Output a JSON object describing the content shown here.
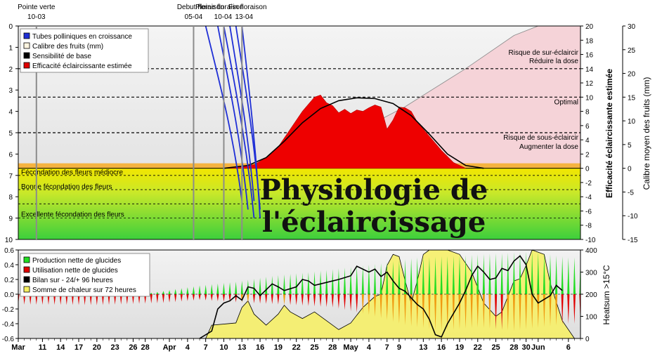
{
  "overlay_title": {
    "line1": "Physiologie de",
    "line2": "l'éclaircissage"
  },
  "chart_data": [
    {
      "type": "area",
      "panel": "top",
      "x_axis": {
        "type": "date",
        "range": [
          "2017-03-07",
          "2017-06-08"
        ]
      },
      "y_left": {
        "range": [
          0,
          10
        ],
        "reversed": true,
        "ticks": [
          "0",
          "1",
          "2",
          "3",
          "4",
          "5",
          "6",
          "7",
          "8",
          "9",
          "10"
        ]
      },
      "y_right1": {
        "label": "Efficacité éclaircissante estimée",
        "range": [
          -10,
          20
        ],
        "ticks": [
          "20",
          "18",
          "16",
          "14",
          "12",
          "10",
          "8",
          "6",
          "4",
          "2",
          "0",
          "-2",
          "-4",
          "-6",
          "-8",
          "-10"
        ]
      },
      "y_right2": {
        "label": "Calibre moyen des fruits (mm)",
        "range": [
          -15,
          30
        ],
        "ticks": [
          "30",
          "25",
          "20",
          "15",
          "10",
          "5",
          "0",
          "-5",
          "-10",
          "-15"
        ]
      },
      "legend": {
        "placement": "top-left",
        "entries": [
          {
            "name": "Tubes polliniques en croissance",
            "color": "#1f2fd6"
          },
          {
            "name": "Calibre des fruits (mm)",
            "color": "#fff5e0"
          },
          {
            "name": "Sensibilité de base",
            "color": "#000000"
          },
          {
            "name": "Efficacité éclaircissante estimée",
            "color": "#e00000"
          }
        ]
      },
      "events": [
        {
          "date": "2017-03-10",
          "label": "Pointe verte",
          "sub": "10-03"
        },
        {
          "date": "2017-04-05",
          "label": "Debut floraison",
          "sub": "05-04"
        },
        {
          "date": "2017-04-10",
          "label": "Pleine floraison",
          "sub": "10-04"
        },
        {
          "date": "2017-04-13",
          "label": "Fin floraison",
          "sub": "13-04"
        }
      ],
      "thresholds": [
        {
          "value": 14,
          "label": "Risque de sur-éclaircir",
          "sub": "Réduire la dose"
        },
        {
          "value": 10,
          "label": "Optimal",
          "sub": ""
        },
        {
          "value": 5,
          "label": "Risque de sous-éclaircir",
          "sub": "Augmenter la dose"
        }
      ],
      "zones": [
        {
          "label": "Fécondation des fleurs médiocre"
        },
        {
          "label": "Bonne fécondation des fleurs"
        },
        {
          "label": "Excellente fécondation des fleurs"
        }
      ],
      "efficacite_series": [
        [
          "2017-04-10",
          0
        ],
        [
          "2017-04-15",
          0.5
        ],
        [
          "2017-04-17",
          1.5
        ],
        [
          "2017-04-19",
          3
        ],
        [
          "2017-04-21",
          5.5
        ],
        [
          "2017-04-23",
          8
        ],
        [
          "2017-04-25",
          10
        ],
        [
          "2017-04-26",
          10.3
        ],
        [
          "2017-04-27",
          9.2
        ],
        [
          "2017-04-28",
          8.8
        ],
        [
          "2017-04-29",
          7.8
        ],
        [
          "2017-04-30",
          8.3
        ],
        [
          "2017-05-01",
          7.7
        ],
        [
          "2017-05-02",
          8.2
        ],
        [
          "2017-05-03",
          8.0
        ],
        [
          "2017-05-04",
          8.5
        ],
        [
          "2017-05-05",
          8.9
        ],
        [
          "2017-05-06",
          8.6
        ],
        [
          "2017-05-07",
          5.5
        ],
        [
          "2017-05-08",
          6.8
        ],
        [
          "2017-05-09",
          8.6
        ],
        [
          "2017-05-10",
          8.5
        ],
        [
          "2017-05-11",
          8.0
        ],
        [
          "2017-05-12",
          6.5
        ],
        [
          "2017-05-14",
          4.5
        ],
        [
          "2017-05-16",
          2.5
        ],
        [
          "2017-05-18",
          0.8
        ],
        [
          "2017-05-20",
          0
        ]
      ],
      "sensibilite_series": [
        [
          "2017-04-10",
          0
        ],
        [
          "2017-04-14",
          0.4
        ],
        [
          "2017-04-17",
          1.5
        ],
        [
          "2017-04-20",
          3.8
        ],
        [
          "2017-04-23",
          6.4
        ],
        [
          "2017-04-26",
          8.4
        ],
        [
          "2017-04-29",
          9.5
        ],
        [
          "2017-05-02",
          9.9
        ],
        [
          "2017-05-05",
          9.8
        ],
        [
          "2017-05-08",
          9.1
        ],
        [
          "2017-05-11",
          7.4
        ],
        [
          "2017-05-14",
          4.8
        ],
        [
          "2017-05-17",
          2.0
        ],
        [
          "2017-05-20",
          0.4
        ],
        [
          "2017-05-23",
          0
        ]
      ],
      "calibre_series": [
        [
          "2017-04-10",
          0
        ],
        [
          "2017-04-20",
          2
        ],
        [
          "2017-05-01",
          7
        ],
        [
          "2017-05-10",
          13
        ],
        [
          "2017-05-20",
          21
        ],
        [
          "2017-05-28",
          28
        ],
        [
          "2017-06-01",
          30
        ]
      ],
      "pollen_tubes": [
        {
          "start": "2017-04-07",
          "end": "2017-04-13"
        },
        {
          "start": "2017-04-09",
          "end": "2017-04-14"
        },
        {
          "start": "2017-04-10",
          "end": "2017-04-15"
        },
        {
          "start": "2017-04-11",
          "end": "2017-04-15"
        },
        {
          "start": "2017-04-12",
          "end": "2017-04-16"
        },
        {
          "start": "2017-04-13",
          "end": "2017-04-16"
        }
      ]
    },
    {
      "type": "bar",
      "panel": "bottom",
      "x_axis": {
        "type": "date",
        "range": [
          "2017-03-07",
          "2017-06-08"
        ],
        "ticks": [
          [
            "2017-03-07",
            "Mar"
          ],
          [
            "2017-03-11",
            "11"
          ],
          [
            "2017-03-14",
            "14"
          ],
          [
            "2017-03-17",
            "17"
          ],
          [
            "2017-03-20",
            "20"
          ],
          [
            "2017-03-23",
            "23"
          ],
          [
            "2017-03-26",
            "26"
          ],
          [
            "2017-03-28",
            "28"
          ],
          [
            "2017-04-01",
            "Apr"
          ],
          [
            "2017-04-04",
            "4"
          ],
          [
            "2017-04-07",
            "7"
          ],
          [
            "2017-04-10",
            "10"
          ],
          [
            "2017-04-13",
            "13"
          ],
          [
            "2017-04-16",
            "16"
          ],
          [
            "2017-04-19",
            "19"
          ],
          [
            "2017-04-22",
            "22"
          ],
          [
            "2017-04-25",
            "25"
          ],
          [
            "2017-04-28",
            "28"
          ],
          [
            "2017-05-01",
            "May"
          ],
          [
            "2017-05-04",
            "4"
          ],
          [
            "2017-05-07",
            "7"
          ],
          [
            "2017-05-09",
            "9"
          ],
          [
            "2017-05-13",
            "13"
          ],
          [
            "2017-05-16",
            "16"
          ],
          [
            "2017-05-19",
            "19"
          ],
          [
            "2017-05-22",
            "22"
          ],
          [
            "2017-05-25",
            "25"
          ],
          [
            "2017-05-28",
            "28"
          ],
          [
            "2017-05-30",
            "30"
          ],
          [
            "2017-06-01",
            "Jun"
          ],
          [
            "2017-06-06",
            "6"
          ]
        ]
      },
      "y_left": {
        "range": [
          -0.6,
          0.6
        ],
        "ticks": [
          "0.6",
          "0.4",
          "0.2",
          "0.0",
          "-0.2",
          "-0.4",
          "-0.6"
        ]
      },
      "y_right": {
        "label": "Heatsum >15°C",
        "range": [
          0,
          400
        ],
        "ticks": [
          "400",
          "300",
          "200",
          "100",
          "0"
        ]
      },
      "legend": {
        "placement": "top-left",
        "entries": [
          {
            "name": "Production nette de glucides",
            "color": "#22dd22"
          },
          {
            "name": "Utilisation nette de glucides",
            "color": "#e00000"
          },
          {
            "name": "Bilan sur - 24/+ 96 heures",
            "color": "#000000"
          },
          {
            "name": "Somme de chaleur sur 72 heures",
            "color": "#f7f060"
          }
        ]
      },
      "heatsum_series": [
        [
          "2017-04-07",
          0
        ],
        [
          "2017-04-08",
          60
        ],
        [
          "2017-04-12",
          70
        ],
        [
          "2017-04-13",
          140
        ],
        [
          "2017-04-14",
          170
        ],
        [
          "2017-04-15",
          110
        ],
        [
          "2017-04-17",
          60
        ],
        [
          "2017-04-19",
          110
        ],
        [
          "2017-04-20",
          150
        ],
        [
          "2017-04-21",
          120
        ],
        [
          "2017-04-23",
          90
        ],
        [
          "2017-04-25",
          120
        ],
        [
          "2017-04-27",
          80
        ],
        [
          "2017-04-29",
          40
        ],
        [
          "2017-05-01",
          70
        ],
        [
          "2017-05-03",
          140
        ],
        [
          "2017-05-05",
          190
        ],
        [
          "2017-05-06",
          200
        ],
        [
          "2017-05-07",
          330
        ],
        [
          "2017-05-08",
          380
        ],
        [
          "2017-05-09",
          370
        ],
        [
          "2017-05-10",
          260
        ],
        [
          "2017-05-11",
          160
        ],
        [
          "2017-05-12",
          260
        ],
        [
          "2017-05-13",
          380
        ],
        [
          "2017-05-14",
          400
        ],
        [
          "2017-05-17",
          400
        ],
        [
          "2017-05-19",
          380
        ],
        [
          "2017-05-21",
          300
        ],
        [
          "2017-05-23",
          160
        ],
        [
          "2017-05-25",
          100
        ],
        [
          "2017-05-26",
          120
        ],
        [
          "2017-05-27",
          190
        ],
        [
          "2017-05-28",
          260
        ],
        [
          "2017-05-29",
          270
        ],
        [
          "2017-05-30",
          330
        ],
        [
          "2017-05-31",
          400
        ],
        [
          "2017-06-02",
          380
        ],
        [
          "2017-06-03",
          250
        ],
        [
          "2017-06-05",
          80
        ],
        [
          "2017-06-07",
          0
        ]
      ],
      "bilan_series": [
        [
          "2017-04-06",
          -0.6
        ],
        [
          "2017-04-08",
          -0.5
        ],
        [
          "2017-04-09",
          -0.2
        ],
        [
          "2017-04-10",
          -0.12
        ],
        [
          "2017-04-11",
          -0.09
        ],
        [
          "2017-04-12",
          -0.02
        ],
        [
          "2017-04-13",
          -0.08
        ],
        [
          "2017-04-14",
          0.1
        ],
        [
          "2017-04-15",
          0.08
        ],
        [
          "2017-04-16",
          -0.02
        ],
        [
          "2017-04-18",
          0.14
        ],
        [
          "2017-04-19",
          0.1
        ],
        [
          "2017-04-20",
          0.05
        ],
        [
          "2017-04-22",
          0.1
        ],
        [
          "2017-04-23",
          0.2
        ],
        [
          "2017-04-24",
          0.18
        ],
        [
          "2017-04-25",
          0.12
        ],
        [
          "2017-04-27",
          0.16
        ],
        [
          "2017-04-29",
          0.2
        ],
        [
          "2017-05-01",
          0.25
        ],
        [
          "2017-05-02",
          0.38
        ],
        [
          "2017-05-04",
          0.3
        ],
        [
          "2017-05-05",
          0.34
        ],
        [
          "2017-05-06",
          0.24
        ],
        [
          "2017-05-07",
          0.3
        ],
        [
          "2017-05-08",
          0.18
        ],
        [
          "2017-05-09",
          0.08
        ],
        [
          "2017-05-10",
          0.04
        ],
        [
          "2017-05-12",
          -0.14
        ],
        [
          "2017-05-13",
          -0.2
        ],
        [
          "2017-05-14",
          -0.34
        ],
        [
          "2017-05-15",
          -0.55
        ],
        [
          "2017-05-16",
          -0.58
        ],
        [
          "2017-05-17",
          -0.4
        ],
        [
          "2017-05-19",
          -0.12
        ],
        [
          "2017-05-20",
          0.05
        ],
        [
          "2017-05-21",
          0.25
        ],
        [
          "2017-05-22",
          0.38
        ],
        [
          "2017-05-23",
          0.3
        ],
        [
          "2017-05-24",
          0.2
        ],
        [
          "2017-05-25",
          0.22
        ],
        [
          "2017-05-26",
          0.35
        ],
        [
          "2017-05-27",
          0.32
        ],
        [
          "2017-05-28",
          0.45
        ],
        [
          "2017-05-29",
          0.52
        ],
        [
          "2017-05-30",
          0.4
        ],
        [
          "2017-05-31",
          0.0
        ],
        [
          "2017-06-01",
          -0.12
        ],
        [
          "2017-06-03",
          -0.02
        ],
        [
          "2017-06-04",
          0.12
        ],
        [
          "2017-06-05",
          0.05
        ]
      ],
      "daily_production_peak": [
        [
          "2017-03-07",
          0.0
        ],
        [
          "2017-03-29",
          0.02
        ],
        [
          "2017-04-06",
          0.12
        ],
        [
          "2017-04-12",
          0.17
        ],
        [
          "2017-04-18",
          0.25
        ],
        [
          "2017-04-24",
          0.3
        ],
        [
          "2017-04-30",
          0.36
        ],
        [
          "2017-05-06",
          0.42
        ],
        [
          "2017-05-12",
          0.5
        ],
        [
          "2017-05-18",
          0.52
        ],
        [
          "2017-05-24",
          0.55
        ],
        [
          "2017-05-31",
          0.58
        ],
        [
          "2017-06-06",
          0.5
        ]
      ],
      "daily_utilisation_peak": [
        [
          "2017-03-07",
          -0.14
        ],
        [
          "2017-03-20",
          -0.15
        ],
        [
          "2017-03-31",
          -0.12
        ],
        [
          "2017-04-06",
          -0.08
        ],
        [
          "2017-04-14",
          -0.12
        ],
        [
          "2017-04-22",
          -0.15
        ],
        [
          "2017-04-28",
          -0.18
        ],
        [
          "2017-05-04",
          -0.28
        ],
        [
          "2017-05-10",
          -0.42
        ],
        [
          "2017-05-16",
          -0.5
        ],
        [
          "2017-05-22",
          -0.45
        ],
        [
          "2017-05-28",
          -0.5
        ],
        [
          "2017-06-06",
          -0.4
        ]
      ]
    }
  ]
}
